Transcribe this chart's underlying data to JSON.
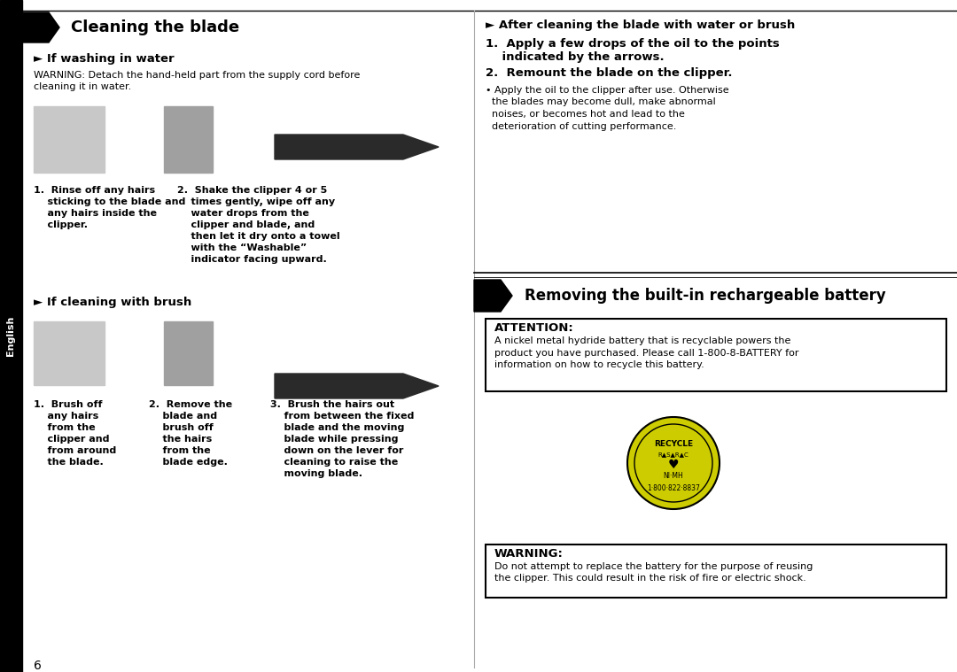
{
  "bg_color": "#ffffff",
  "black": "#000000",
  "white": "#ffffff",
  "gray_light": "#c8c8c8",
  "gray_medium": "#a0a0a0",
  "gray_dark": "#2a2a2a",
  "section1_title": "Cleaning the blade",
  "section2_title": "Removing the built-in rechargeable battery",
  "english_label": "English",
  "subsection1a": "► If washing in water",
  "warning_line1": "WARNING: Detach the hand-held part from the supply cord before",
  "warning_line2": "cleaning it in water.",
  "step1_water_lines": [
    "1.  Rinse off any hairs",
    "    sticking to the blade and",
    "    any hairs inside the",
    "    clipper."
  ],
  "step2_water_lines": [
    "2.  Shake the clipper 4 or 5",
    "    times gently, wipe off any",
    "    water drops from the",
    "    clipper and blade, and",
    "    then let it dry onto a towel",
    "    with the “Washable”",
    "    indicator facing upward."
  ],
  "subsection1b": "► If cleaning with brush",
  "step1_brush_lines": [
    "1.  Brush off",
    "    any hairs",
    "    from the",
    "    clipper and",
    "    from around",
    "    the blade."
  ],
  "step2_brush_lines": [
    "2.  Remove the",
    "    blade and",
    "    brush off",
    "    the hairs",
    "    from the",
    "    blade edge."
  ],
  "step3_brush_lines": [
    "3.  Brush the hairs out",
    "    from between the fixed",
    "    blade and the moving",
    "    blade while pressing",
    "    down on the lever for",
    "    cleaning to raise the",
    "    moving blade."
  ],
  "after_clean_header": "► After cleaning the blade with water or brush",
  "after_clean_step1a": "1.  Apply a few drops of the oil to the points",
  "after_clean_step1b": "    indicated by the arrows.",
  "after_clean_step2": "2.  Remount the blade on the clipper.",
  "after_clean_bullet_lines": [
    "• Apply the oil to the clipper after use. Otherwise",
    "  the blades may become dull, make abnormal",
    "  noises, or becomes hot and lead to the",
    "  deterioration of cutting performance."
  ],
  "attention_title": "ATTENTION:",
  "attention_lines": [
    "A nickel metal hydride battery that is recyclable powers the",
    "product you have purchased. Please call 1-800-8-BATTERY for",
    "information on how to recycle this battery."
  ],
  "warning2_title": "WARNING:",
  "warning2_lines": [
    "Do not attempt to replace the battery for the purpose of reusing",
    "the clipper. This could result in the risk of fire or electric shock."
  ],
  "page_number": "6"
}
